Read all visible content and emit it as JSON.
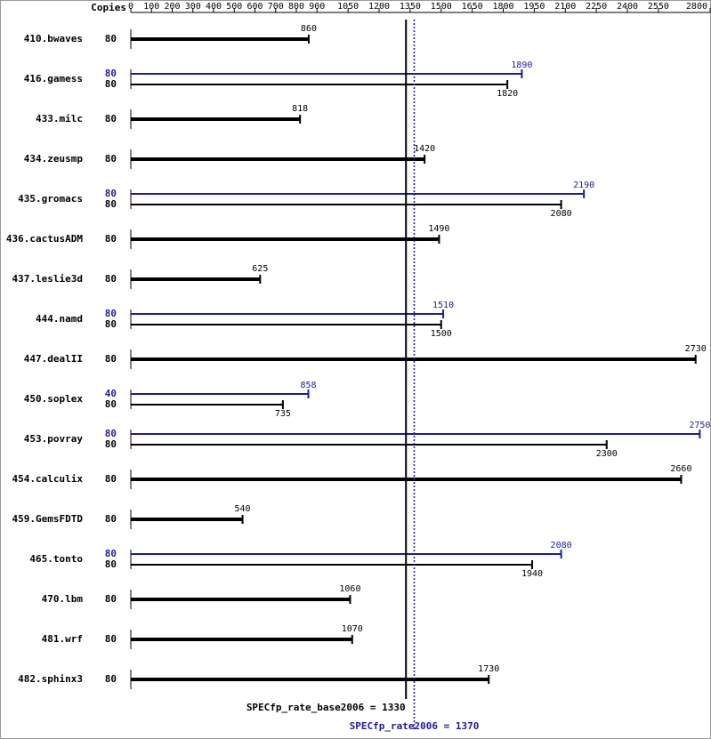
{
  "chart_data": {
    "type": "bar",
    "orientation": "horizontal",
    "copies_header": "Copies",
    "categories": [
      "410.bwaves",
      "416.gamess",
      "433.milc",
      "434.zeusmp",
      "435.gromacs",
      "436.cactusADM",
      "437.leslie3d",
      "444.namd",
      "447.dealII",
      "450.soplex",
      "453.povray",
      "454.calculix",
      "459.GemsFDTD",
      "465.tonto",
      "470.lbm",
      "481.wrf",
      "482.sphinx3"
    ],
    "series": [
      {
        "color": "#000000",
        "values": [
          860,
          1820,
          818,
          1420,
          2080,
          1490,
          625,
          1500,
          2730,
          735,
          2300,
          2660,
          540,
          1940,
          1060,
          1070,
          1730
        ],
        "copies": [
          80,
          80,
          80,
          80,
          80,
          80,
          80,
          80,
          80,
          80,
          80,
          80,
          80,
          80,
          80,
          80,
          80
        ]
      },
      {
        "color": "#1c1c9c",
        "values": [
          null,
          1890,
          null,
          null,
          2190,
          null,
          null,
          1510,
          null,
          858,
          2750,
          null,
          null,
          2080,
          null,
          null,
          null
        ],
        "copies": [
          null,
          80,
          null,
          null,
          80,
          null,
          null,
          80,
          null,
          40,
          80,
          null,
          null,
          80,
          null,
          null,
          null
        ]
      }
    ],
    "xlim": [
      0,
      2800
    ],
    "xticks": [
      0,
      100,
      200,
      300,
      400,
      500,
      600,
      700,
      800,
      900,
      1050,
      1200,
      1350,
      1500,
      1650,
      1800,
      1950,
      2100,
      2250,
      2400,
      2550,
      2800
    ],
    "reference_lines": [
      {
        "text": "SPECfp_rate_base2006 = 1330",
        "value": 1330,
        "color": "#000000",
        "style": "solid"
      },
      {
        "text": "SPECfp_rate2006 = 1370",
        "value": 1370,
        "color": "#1c1c9c",
        "style": "dotted"
      }
    ]
  }
}
